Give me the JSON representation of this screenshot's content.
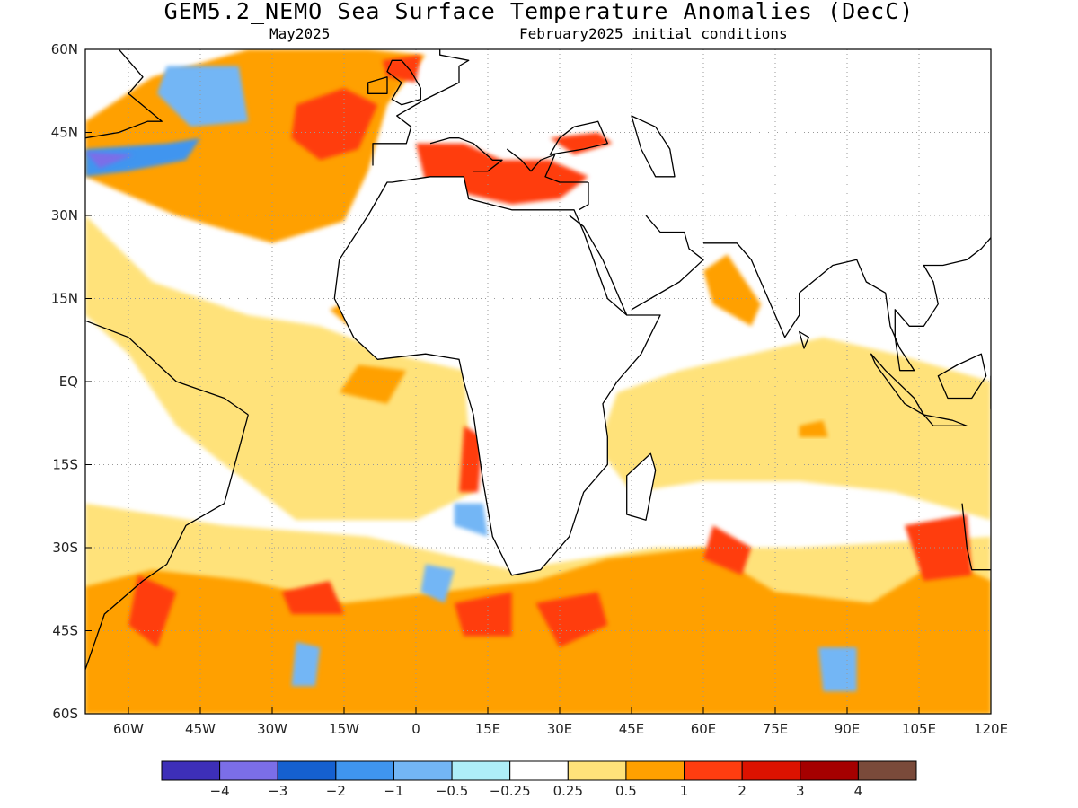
{
  "title": "GEM5.2_NEMO Sea Surface Temperature Anomalies (DecC)",
  "subtitle_left": "May2025",
  "subtitle_right": "February2025 initial conditions",
  "map": {
    "projection": "equirectangular",
    "lon_range": [
      -69,
      120
    ],
    "lat_range": [
      -60,
      60
    ],
    "grid": "dotted",
    "lat_ticks": [
      {
        "lat": 60,
        "label": "60N"
      },
      {
        "lat": 45,
        "label": "45N"
      },
      {
        "lat": 30,
        "label": "30N"
      },
      {
        "lat": 15,
        "label": "15N"
      },
      {
        "lat": 0,
        "label": "EQ"
      },
      {
        "lat": -15,
        "label": "15S"
      },
      {
        "lat": -30,
        "label": "30S"
      },
      {
        "lat": -45,
        "label": "45S"
      },
      {
        "lat": -60,
        "label": "60S"
      }
    ],
    "lon_ticks": [
      {
        "lon": -60,
        "label": "60W"
      },
      {
        "lon": -45,
        "label": "45W"
      },
      {
        "lon": -30,
        "label": "30W"
      },
      {
        "lon": -15,
        "label": "15W"
      },
      {
        "lon": 0,
        "label": "0"
      },
      {
        "lon": 15,
        "label": "15E"
      },
      {
        "lon": 30,
        "label": "30E"
      },
      {
        "lon": 45,
        "label": "45E"
      },
      {
        "lon": 60,
        "label": "60E"
      },
      {
        "lon": 75,
        "label": "75E"
      },
      {
        "lon": 90,
        "label": "90E"
      },
      {
        "lon": 105,
        "label": "105E"
      },
      {
        "lon": 120,
        "label": "120E"
      }
    ]
  },
  "colorbar": {
    "colors": [
      "#3d2fb8",
      "#7b6ee8",
      "#1560d0",
      "#3f95ef",
      "#73b6f5",
      "#aeeef8",
      "#ffffff",
      "#ffe27a",
      "#ffa000",
      "#ff3d10",
      "#dc1200",
      "#a50000",
      "#7a4a3a"
    ],
    "labels": [
      "-4",
      "-3",
      "-2",
      "-1",
      "-0.5",
      "-0.25",
      "0.25",
      "0.5",
      "1",
      "2",
      "3",
      "4"
    ]
  },
  "anomaly_regions": [
    {
      "level": "0.5",
      "pts": [
        [
          -69,
          37
        ],
        [
          -50,
          30
        ],
        [
          -30,
          25
        ],
        [
          -15,
          29
        ],
        [
          -10,
          38
        ],
        [
          -6,
          50
        ],
        [
          2,
          59
        ],
        [
          -10,
          60
        ],
        [
          -35,
          60
        ],
        [
          -55,
          55
        ],
        [
          -69,
          47
        ]
      ]
    },
    {
      "level": "0.25",
      "pts": [
        [
          -69,
          30
        ],
        [
          -55,
          18
        ],
        [
          -35,
          12
        ],
        [
          -20,
          10
        ],
        [
          -5,
          5
        ],
        [
          10,
          2
        ],
        [
          12,
          -20
        ],
        [
          0,
          -25
        ],
        [
          -25,
          -25
        ],
        [
          -40,
          -15
        ],
        [
          -50,
          -8
        ],
        [
          -60,
          5
        ],
        [
          -69,
          12
        ]
      ]
    },
    {
      "level": "0.5",
      "pts": [
        [
          -12,
          3
        ],
        [
          -2,
          2
        ],
        [
          -6,
          -4
        ],
        [
          -16,
          -2
        ]
      ]
    },
    {
      "level": "0.5",
      "pts": [
        [
          -18,
          13
        ],
        [
          -13,
          15
        ],
        [
          -14,
          10
        ]
      ]
    },
    {
      "level": "1",
      "pts": [
        [
          -25,
          50
        ],
        [
          -15,
          53
        ],
        [
          -8,
          50
        ],
        [
          -12,
          42
        ],
        [
          -20,
          40
        ],
        [
          -26,
          44
        ]
      ]
    },
    {
      "level": "1",
      "pts": [
        [
          -7,
          58
        ],
        [
          1,
          59
        ],
        [
          0,
          54
        ],
        [
          -6,
          55
        ]
      ]
    },
    {
      "level": "-1",
      "pts": [
        [
          -69,
          42
        ],
        [
          -52,
          43
        ],
        [
          -45,
          44
        ],
        [
          -48,
          40
        ],
        [
          -60,
          38
        ],
        [
          -69,
          37
        ]
      ]
    },
    {
      "level": "-3",
      "pts": [
        [
          -69,
          41.5
        ],
        [
          -59,
          41
        ],
        [
          -66,
          38.5
        ]
      ]
    },
    {
      "level": "-1",
      "pts": [
        [
          -49,
          55
        ],
        [
          -39,
          55
        ],
        [
          -38,
          48
        ],
        [
          -44,
          48
        ],
        [
          -50,
          51
        ]
      ]
    },
    {
      "level": "-0.5",
      "pts": [
        [
          -52,
          57
        ],
        [
          -37,
          57
        ],
        [
          -35,
          47
        ],
        [
          -47,
          46
        ],
        [
          -54,
          52
        ]
      ]
    },
    {
      "level": "1",
      "pts": [
        [
          0,
          43
        ],
        [
          10,
          43
        ],
        [
          18,
          40
        ],
        [
          28,
          40
        ],
        [
          36,
          37
        ],
        [
          30,
          33
        ],
        [
          20,
          32
        ],
        [
          10,
          34
        ],
        [
          2,
          36
        ]
      ]
    },
    {
      "level": "1",
      "pts": [
        [
          28,
          44
        ],
        [
          38,
          45
        ],
        [
          41,
          43
        ],
        [
          33,
          41
        ]
      ]
    },
    {
      "level": "0.25",
      "pts": [
        [
          42,
          -2
        ],
        [
          55,
          2
        ],
        [
          70,
          5
        ],
        [
          85,
          8
        ],
        [
          100,
          5
        ],
        [
          120,
          0
        ],
        [
          120,
          -25
        ],
        [
          100,
          -20
        ],
        [
          80,
          -18
        ],
        [
          60,
          -18
        ],
        [
          45,
          -20
        ],
        [
          38,
          -12
        ]
      ]
    },
    {
      "level": "0.5",
      "pts": [
        [
          60,
          20
        ],
        [
          65,
          23
        ],
        [
          72,
          14
        ],
        [
          70,
          10
        ],
        [
          62,
          14
        ]
      ]
    },
    {
      "level": "0.5",
      "pts": [
        [
          80,
          -8
        ],
        [
          85,
          -7
        ],
        [
          86,
          -10
        ],
        [
          80,
          -10
        ]
      ]
    },
    {
      "level": "0.25",
      "pts": [
        [
          -69,
          -22
        ],
        [
          -40,
          -26
        ],
        [
          -10,
          -28
        ],
        [
          20,
          -34
        ],
        [
          50,
          -30
        ],
        [
          80,
          -30
        ],
        [
          120,
          -28
        ],
        [
          120,
          -60
        ],
        [
          -69,
          -60
        ]
      ]
    },
    {
      "level": "0.5",
      "pts": [
        [
          -69,
          -37
        ],
        [
          -55,
          -34
        ],
        [
          -35,
          -36
        ],
        [
          -15,
          -40
        ],
        [
          5,
          -38
        ],
        [
          25,
          -36
        ],
        [
          40,
          -32
        ],
        [
          60,
          -30
        ],
        [
          75,
          -38
        ],
        [
          95,
          -40
        ],
        [
          110,
          -32
        ],
        [
          120,
          -36
        ],
        [
          120,
          -60
        ],
        [
          -69,
          -60
        ]
      ]
    },
    {
      "level": "1",
      "pts": [
        [
          -58,
          -35
        ],
        [
          -50,
          -38
        ],
        [
          -54,
          -48
        ],
        [
          -60,
          -44
        ]
      ]
    },
    {
      "level": "1",
      "pts": [
        [
          -28,
          -38
        ],
        [
          -18,
          -36
        ],
        [
          -15,
          -42
        ],
        [
          -26,
          -42
        ]
      ]
    },
    {
      "level": "1",
      "pts": [
        [
          8,
          -40
        ],
        [
          20,
          -38
        ],
        [
          20,
          -46
        ],
        [
          10,
          -46
        ]
      ]
    },
    {
      "level": "1",
      "pts": [
        [
          25,
          -40
        ],
        [
          38,
          -38
        ],
        [
          40,
          -44
        ],
        [
          30,
          -48
        ]
      ]
    },
    {
      "level": "1",
      "pts": [
        [
          62,
          -26
        ],
        [
          70,
          -30
        ],
        [
          68,
          -35
        ],
        [
          60,
          -32
        ]
      ]
    },
    {
      "level": "1",
      "pts": [
        [
          102,
          -26
        ],
        [
          115,
          -24
        ],
        [
          116,
          -35
        ],
        [
          106,
          -36
        ]
      ]
    },
    {
      "level": "1",
      "pts": [
        [
          10,
          -8
        ],
        [
          14,
          -10
        ],
        [
          13,
          -20
        ],
        [
          9,
          -20
        ]
      ]
    },
    {
      "level": "-0.5",
      "pts": [
        [
          2,
          -33
        ],
        [
          8,
          -34
        ],
        [
          6,
          -40
        ],
        [
          1,
          -38
        ]
      ]
    },
    {
      "level": "-0.5",
      "pts": [
        [
          84,
          -48
        ],
        [
          92,
          -48
        ],
        [
          92,
          -56
        ],
        [
          85,
          -56
        ]
      ]
    },
    {
      "level": "-0.5",
      "pts": [
        [
          -25,
          -47
        ],
        [
          -20,
          -48
        ],
        [
          -21,
          -55
        ],
        [
          -26,
          -55
        ]
      ]
    },
    {
      "level": "-0.5",
      "pts": [
        [
          8,
          -22
        ],
        [
          14,
          -22
        ],
        [
          15,
          -28
        ],
        [
          8,
          -26
        ]
      ]
    }
  ],
  "coastlines": [
    [
      [
        -6,
        36
      ],
      [
        -10,
        30
      ],
      [
        -16,
        22
      ],
      [
        -17,
        15
      ],
      [
        -13,
        8
      ],
      [
        -8,
        4
      ],
      [
        2,
        5
      ],
      [
        9,
        4
      ],
      [
        10,
        0
      ],
      [
        12,
        -6
      ],
      [
        14,
        -18
      ],
      [
        16,
        -28
      ],
      [
        20,
        -35
      ],
      [
        26,
        -34
      ],
      [
        32,
        -28
      ],
      [
        35,
        -20
      ],
      [
        40,
        -15
      ],
      [
        40,
        -10
      ],
      [
        39,
        -4
      ],
      [
        42,
        0
      ],
      [
        47,
        5
      ],
      [
        51,
        12
      ],
      [
        44,
        12
      ],
      [
        40,
        15
      ],
      [
        35,
        27
      ],
      [
        33,
        31
      ],
      [
        26,
        31
      ],
      [
        20,
        31
      ],
      [
        11,
        33
      ],
      [
        10,
        37
      ],
      [
        3,
        37
      ],
      [
        -5,
        36
      ],
      [
        -6,
        36
      ]
    ],
    [
      [
        49,
        -13
      ],
      [
        50,
        -16
      ],
      [
        48,
        -25
      ],
      [
        44,
        -24
      ],
      [
        44,
        -17
      ],
      [
        49,
        -13
      ]
    ],
    [
      [
        -35,
        -6
      ],
      [
        -40,
        -3
      ],
      [
        -50,
        0
      ],
      [
        -60,
        8
      ],
      [
        -69,
        11
      ]
    ],
    [
      [
        -35,
        -6
      ],
      [
        -40,
        -22
      ],
      [
        -48,
        -26
      ],
      [
        -52,
        -33
      ],
      [
        -57,
        -36
      ],
      [
        -65,
        -42
      ],
      [
        -67,
        -47
      ],
      [
        -69,
        -52
      ]
    ],
    [
      [
        -69,
        44
      ],
      [
        -62,
        45
      ],
      [
        -56,
        47
      ],
      [
        -53,
        47
      ],
      [
        -60,
        52
      ],
      [
        -57,
        55
      ],
      [
        -62,
        60
      ]
    ],
    [
      [
        -9,
        39
      ],
      [
        -9,
        43
      ],
      [
        -2,
        43
      ],
      [
        -1,
        46
      ],
      [
        -4,
        48
      ],
      [
        2,
        51
      ],
      [
        9,
        54
      ],
      [
        9,
        57
      ],
      [
        11,
        58
      ],
      [
        5,
        59
      ],
      [
        5,
        60
      ]
    ],
    [
      [
        3,
        43
      ],
      [
        7,
        44
      ],
      [
        9,
        44
      ],
      [
        12,
        43
      ],
      [
        16,
        40
      ],
      [
        18,
        40
      ],
      [
        15,
        38
      ],
      [
        12,
        38
      ]
    ],
    [
      [
        -3,
        50
      ],
      [
        -5,
        51
      ],
      [
        -3,
        54
      ],
      [
        -6,
        56
      ],
      [
        -5,
        58
      ],
      [
        -3,
        58
      ],
      [
        -1,
        56
      ],
      [
        1,
        53
      ],
      [
        1,
        51
      ],
      [
        -3,
        50
      ]
    ],
    [
      [
        -10,
        52
      ],
      [
        -6,
        52
      ],
      [
        -6,
        55
      ],
      [
        -10,
        54
      ],
      [
        -10,
        52
      ]
    ],
    [
      [
        19,
        42
      ],
      [
        22,
        40
      ],
      [
        24,
        38
      ],
      [
        26,
        40
      ],
      [
        29,
        41
      ],
      [
        27,
        37
      ],
      [
        30,
        36
      ],
      [
        36,
        36
      ]
    ],
    [
      [
        28,
        41
      ],
      [
        30,
        44
      ],
      [
        33,
        46
      ],
      [
        38,
        47
      ],
      [
        40,
        43
      ],
      [
        35,
        42
      ],
      [
        28,
        41
      ]
    ],
    [
      [
        36,
        36
      ],
      [
        36,
        32
      ],
      [
        34,
        31
      ]
    ],
    [
      [
        32,
        30
      ],
      [
        35,
        28
      ],
      [
        39,
        22
      ],
      [
        43,
        14
      ],
      [
        44,
        12
      ]
    ],
    [
      [
        45,
        48
      ],
      [
        47,
        42
      ],
      [
        50,
        37
      ],
      [
        54,
        37
      ],
      [
        53,
        42
      ],
      [
        50,
        46
      ],
      [
        45,
        48
      ]
    ],
    [
      [
        48,
        30
      ],
      [
        51,
        27
      ],
      [
        56,
        27
      ],
      [
        57,
        24
      ],
      [
        60,
        22
      ],
      [
        55,
        18
      ],
      [
        45,
        13
      ]
    ],
    [
      [
        60,
        25
      ],
      [
        67,
        25
      ],
      [
        70,
        22
      ],
      [
        73,
        16
      ],
      [
        77,
        8
      ],
      [
        80,
        12
      ],
      [
        80,
        16
      ],
      [
        87,
        21
      ],
      [
        92,
        22
      ],
      [
        94,
        18
      ],
      [
        98,
        16
      ],
      [
        99,
        10
      ],
      [
        101,
        6
      ],
      [
        104,
        2
      ],
      [
        101,
        2
      ],
      [
        100,
        8
      ],
      [
        100,
        13
      ],
      [
        103,
        10
      ],
      [
        106,
        10
      ],
      [
        109,
        14
      ],
      [
        108,
        18
      ],
      [
        106,
        21
      ],
      [
        110,
        21
      ],
      [
        115,
        22
      ],
      [
        118,
        24
      ],
      [
        120,
        26
      ]
    ],
    [
      [
        95,
        5
      ],
      [
        98,
        2
      ],
      [
        104,
        -3
      ],
      [
        106,
        -6
      ],
      [
        102,
        -4
      ],
      [
        96,
        3
      ],
      [
        95,
        5
      ]
    ],
    [
      [
        106,
        -6
      ],
      [
        112,
        -7
      ],
      [
        115,
        -8
      ],
      [
        108,
        -8
      ],
      [
        106,
        -6
      ]
    ],
    [
      [
        109,
        1
      ],
      [
        113,
        3
      ],
      [
        118,
        5
      ],
      [
        119,
        1
      ],
      [
        116,
        -3
      ],
      [
        111,
        -3
      ],
      [
        109,
        1
      ]
    ],
    [
      [
        120,
        1
      ],
      [
        120,
        -5
      ]
    ],
    [
      [
        114,
        -22
      ],
      [
        115,
        -30
      ],
      [
        116,
        -34
      ],
      [
        120,
        -34
      ]
    ],
    [
      [
        80,
        9
      ],
      [
        82,
        8
      ],
      [
        81,
        6
      ],
      [
        80,
        9
      ]
    ]
  ]
}
